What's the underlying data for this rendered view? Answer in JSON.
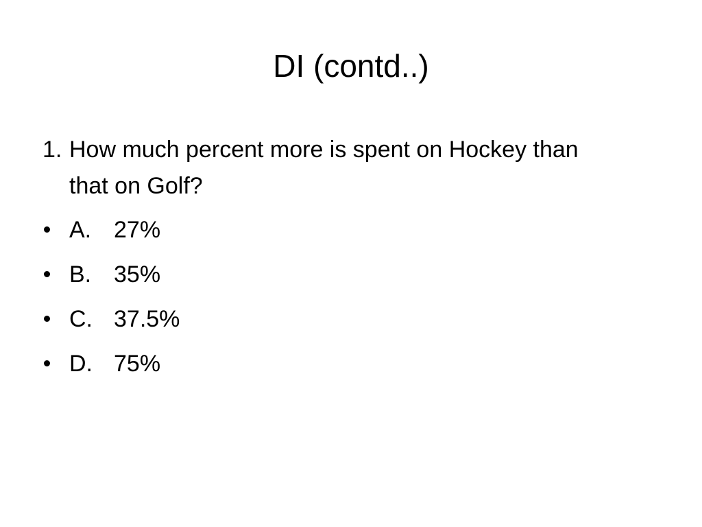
{
  "title": "DI (contd..)",
  "question": {
    "number": "1.",
    "text": "How much percent more is spent on Hockey than that on Golf?"
  },
  "options": [
    {
      "letter": "A.",
      "text": "27%"
    },
    {
      "letter": "B.",
      "text": "35%"
    },
    {
      "letter": "C.",
      "text": "37.5%"
    },
    {
      "letter": "D.",
      "text": "75%"
    }
  ]
}
